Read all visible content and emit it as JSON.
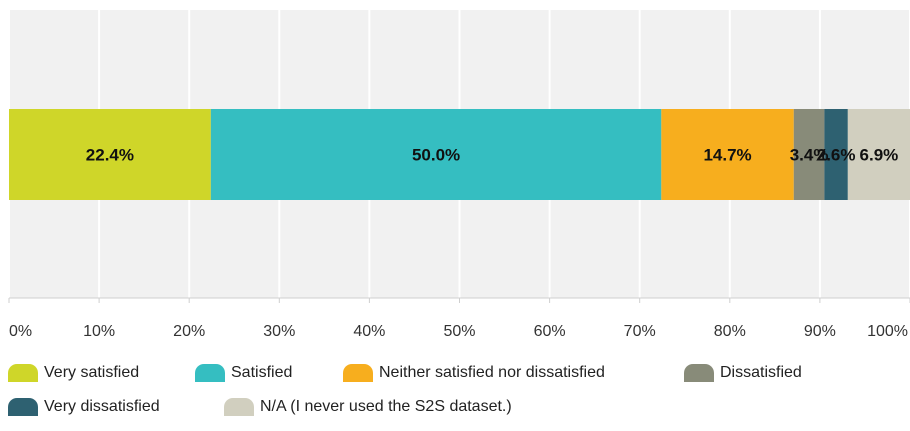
{
  "chart_data": {
    "type": "bar",
    "orientation": "horizontal",
    "stacked": true,
    "categories": [
      ""
    ],
    "series": [
      {
        "name": "Very satisfied",
        "values": [
          22.4
        ],
        "label": "22.4%",
        "color": "#cfd629"
      },
      {
        "name": "Satisfied",
        "values": [
          50.0
        ],
        "label": "50.0%",
        "color": "#35bec1"
      },
      {
        "name": "Neither satisfied nor dissatisfied",
        "values": [
          14.7
        ],
        "label": "14.7%",
        "color": "#f7ae1e"
      },
      {
        "name": "Dissatisfied",
        "values": [
          3.4
        ],
        "label": "3.4%",
        "color": "#888b79"
      },
      {
        "name": "Very dissatisfied",
        "values": [
          2.6
        ],
        "label": "2.6%",
        "color": "#2e6171"
      },
      {
        "name": "N/A (I never used the S2S dataset.)",
        "values": [
          6.9
        ],
        "label": "6.9%",
        "color": "#d1cfbf"
      }
    ],
    "xlim": [
      0,
      100
    ],
    "xticks": [
      0,
      10,
      20,
      30,
      40,
      50,
      60,
      70,
      80,
      90,
      100
    ],
    "xtick_labels": [
      "0%",
      "10%",
      "20%",
      "30%",
      "40%",
      "50%",
      "60%",
      "70%",
      "80%",
      "90%",
      "100%"
    ],
    "grid": true,
    "legend_position": "bottom",
    "background_color": "#f1f1f1",
    "grid_color": "#ffffff"
  }
}
